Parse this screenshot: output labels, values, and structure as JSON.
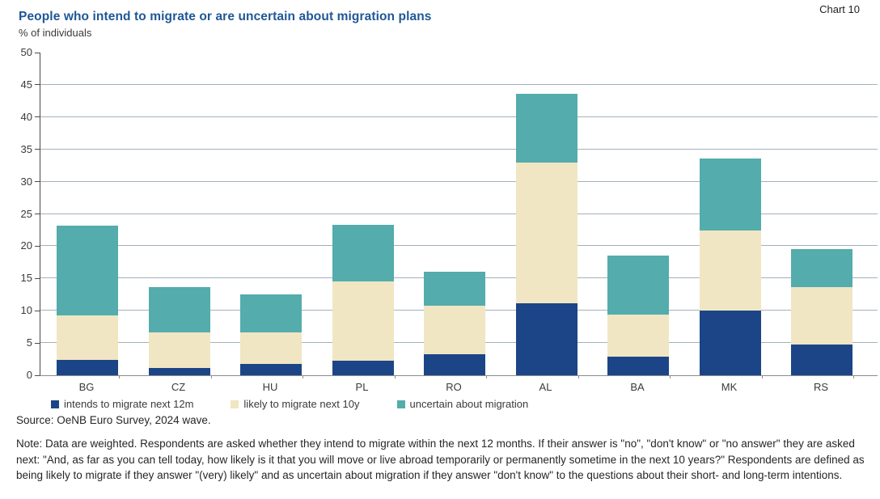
{
  "page": {
    "chart_label": "Chart 10"
  },
  "source": "Source: OeNB Euro Survey, 2024 wave.",
  "note": "Note: Data are weighted. Respondents are asked whether they intend to migrate within the next 12 months. If their answer is \"no\", \"don't know\" or \"no answer\" they are asked next: \"And, as far as you can tell today, how likely is it that you will move or live abroad temporarily or permanently sometime in the next 10 years?\" Respondents are defined as being likely to migrate if they answer \"(very) likely\" and as uncertain about migration if they answer \"don't know\" to the questions about their short- and long-term intentions.",
  "chart_data": {
    "type": "bar",
    "stacked": true,
    "title": "People who intend to migrate or are uncertain about migration plans",
    "ylabel": "% of individuals",
    "categories": [
      "BG",
      "CZ",
      "HU",
      "PL",
      "RO",
      "AL",
      "BA",
      "MK",
      "RS"
    ],
    "series": [
      {
        "name": "intends to migrate next 12m",
        "color": "#1c4588",
        "values": [
          2.4,
          1.1,
          1.8,
          2.2,
          3.3,
          11.1,
          2.9,
          10.0,
          4.8
        ]
      },
      {
        "name": "likely to migrate next 10y",
        "color": "#f0e6c3",
        "values": [
          6.9,
          5.5,
          4.8,
          12.3,
          7.5,
          21.9,
          6.5,
          12.4,
          8.8
        ]
      },
      {
        "name": "uncertain about migration",
        "color": "#54acac",
        "values": [
          13.9,
          7.1,
          5.9,
          8.8,
          5.3,
          10.6,
          9.2,
          11.2,
          6.0
        ]
      }
    ],
    "stack_totals": [
      23.2,
      13.7,
      12.5,
      23.3,
      16.1,
      43.6,
      18.6,
      33.6,
      19.6
    ],
    "ylim": [
      0,
      50
    ],
    "ytick_step": 5,
    "grid": true,
    "legend_position": "bottom"
  }
}
